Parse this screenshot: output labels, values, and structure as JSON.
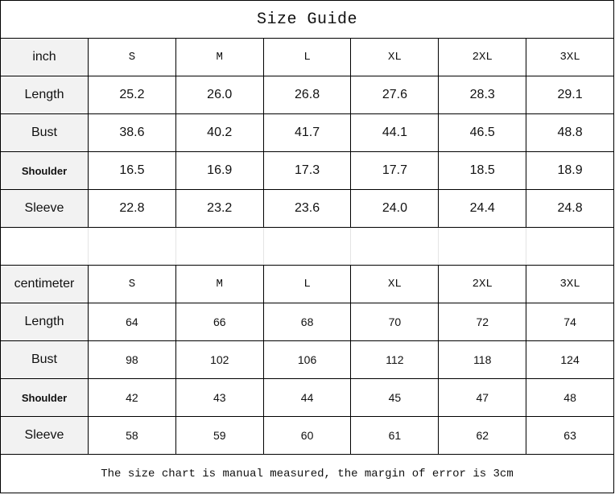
{
  "title": "Size Guide",
  "inch": {
    "unit_label": "inch",
    "sizes": [
      "S",
      "M",
      "L",
      "XL",
      "2XL",
      "3XL"
    ],
    "rows": [
      {
        "label": "Length",
        "values": [
          "25.2",
          "26.0",
          "26.8",
          "27.6",
          "28.3",
          "29.1"
        ]
      },
      {
        "label": "Bust",
        "values": [
          "38.6",
          "40.2",
          "41.7",
          "44.1",
          "46.5",
          "48.8"
        ]
      },
      {
        "label": "Shoulder",
        "values": [
          "16.5",
          "16.9",
          "17.3",
          "17.7",
          "18.5",
          "18.9"
        ]
      },
      {
        "label": "Sleeve",
        "values": [
          "22.8",
          "23.2",
          "23.6",
          "24.0",
          "24.4",
          "24.8"
        ]
      }
    ]
  },
  "cm": {
    "unit_label": "centimeter",
    "sizes": [
      "S",
      "M",
      "L",
      "XL",
      "2XL",
      "3XL"
    ],
    "rows": [
      {
        "label": "Length",
        "values": [
          "64",
          "66",
          "68",
          "70",
          "72",
          "74"
        ]
      },
      {
        "label": "Bust",
        "values": [
          "98",
          "102",
          "106",
          "112",
          "118",
          "124"
        ]
      },
      {
        "label": "Shoulder",
        "values": [
          "42",
          "43",
          "44",
          "45",
          "47",
          "48"
        ]
      },
      {
        "label": "Sleeve",
        "values": [
          "58",
          "59",
          "60",
          "61",
          "62",
          "63"
        ]
      }
    ]
  },
  "footer": "The size chart is manual measured, the margin of error is 3cm",
  "colors": {
    "label_bg": "#f2f2f2",
    "border": "#000000"
  }
}
